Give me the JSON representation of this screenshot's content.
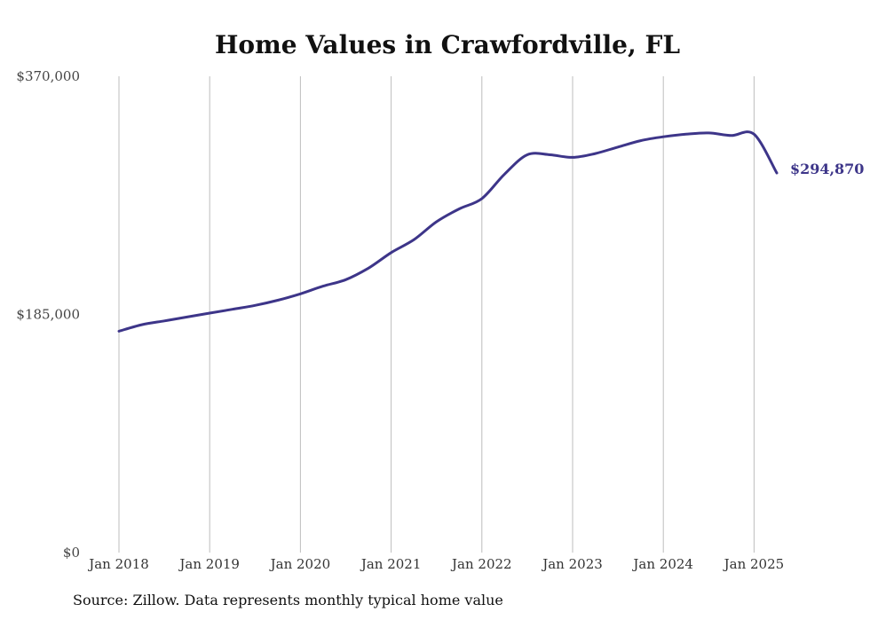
{
  "chart_data": {
    "type": "line",
    "title": "Home Values in Crawfordville, FL",
    "xlabel": "",
    "ylabel": "",
    "ylim": [
      0,
      370000
    ],
    "yticks": [
      {
        "value": 0,
        "label": "$0"
      },
      {
        "value": 185000,
        "label": "$185,000"
      },
      {
        "value": 370000,
        "label": "$370,000"
      }
    ],
    "xticks": [
      {
        "value": 2018,
        "label": "Jan 2018"
      },
      {
        "value": 2019,
        "label": "Jan 2019"
      },
      {
        "value": 2020,
        "label": "Jan 2020"
      },
      {
        "value": 2021,
        "label": "Jan 2021"
      },
      {
        "value": 2022,
        "label": "Jan 2022"
      },
      {
        "value": 2023,
        "label": "Jan 2023"
      },
      {
        "value": 2024,
        "label": "Jan 2024"
      },
      {
        "value": 2025,
        "label": "Jan 2025"
      }
    ],
    "xlim": [
      2018,
      2025.25
    ],
    "grid": {
      "vertical": true,
      "horizontal": false
    },
    "line_color": "#3d3589",
    "end_label": "$294,870",
    "series": [
      {
        "name": "",
        "x": [
          2018.0,
          2018.25,
          2018.5,
          2018.75,
          2019.0,
          2019.25,
          2019.5,
          2019.75,
          2020.0,
          2020.25,
          2020.5,
          2020.75,
          2021.0,
          2021.25,
          2021.5,
          2021.75,
          2022.0,
          2022.25,
          2022.5,
          2022.75,
          2023.0,
          2023.25,
          2023.5,
          2023.75,
          2024.0,
          2024.25,
          2024.5,
          2024.75,
          2025.0,
          2025.25
        ],
        "values": [
          172000,
          177000,
          180000,
          183000,
          186000,
          189000,
          192000,
          196000,
          201000,
          207000,
          212000,
          221000,
          233000,
          243000,
          257000,
          267000,
          275000,
          294000,
          309000,
          309000,
          307000,
          310000,
          315000,
          320000,
          323000,
          325000,
          326000,
          324000,
          325000,
          294870
        ]
      }
    ]
  },
  "footer": {
    "source_text": "Source: Zillow. Data represents monthly typical home value"
  }
}
